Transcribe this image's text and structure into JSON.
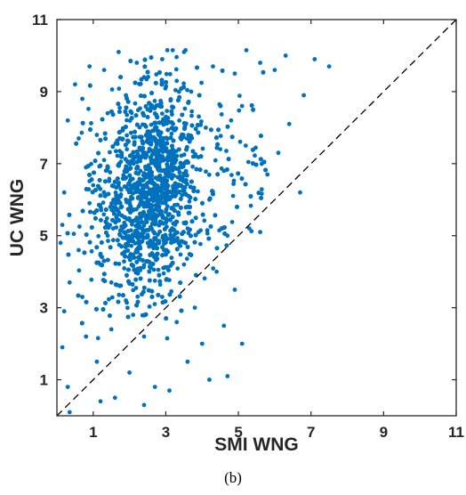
{
  "chart_data": {
    "type": "scatter",
    "xlabel": "SMI WNG",
    "ylabel": "UC WNG",
    "xlim": [
      0,
      11
    ],
    "ylim": [
      0,
      11
    ],
    "xticks": [
      "1",
      "3",
      "5",
      "7",
      "9",
      "11"
    ],
    "yticks": [
      "1",
      "3",
      "5",
      "7",
      "9",
      "11"
    ],
    "grid": false,
    "reference_line": {
      "style": "dashed",
      "from": [
        0,
        0
      ],
      "to": [
        11,
        11
      ],
      "color": "#000000"
    },
    "series": [
      {
        "color": "#0072BD",
        "points_summary": "about 4000 points; x mostly 0.2–7.5 (dense 1–4), y mostly 0.1–10.2 (dense 5–9)",
        "points": [
          [
            1.7,
            10.1
          ],
          [
            3.5,
            10.1
          ],
          [
            6.3,
            10.0
          ],
          [
            7.1,
            9.9
          ],
          [
            7.5,
            9.7
          ],
          [
            6.0,
            9.6
          ],
          [
            5.6,
            9.8
          ],
          [
            0.9,
            9.7
          ],
          [
            0.5,
            9.2
          ],
          [
            0.3,
            8.2
          ],
          [
            6.8,
            8.9
          ],
          [
            6.4,
            8.1
          ],
          [
            6.1,
            7.3
          ],
          [
            5.8,
            6.7
          ],
          [
            6.7,
            6.2
          ],
          [
            5.6,
            5.1
          ],
          [
            5.3,
            5.2
          ],
          [
            4.7,
            5.0
          ],
          [
            4.9,
            3.5
          ],
          [
            4.7,
            1.1
          ],
          [
            4.2,
            1.0
          ],
          [
            4.6,
            2.5
          ],
          [
            5.1,
            2.0
          ],
          [
            0.35,
            3.7
          ],
          [
            0.2,
            2.9
          ],
          [
            0.15,
            1.9
          ],
          [
            0.3,
            0.8
          ],
          [
            0.35,
            0.1
          ],
          [
            0.1,
            4.8
          ],
          [
            0.15,
            5.3
          ],
          [
            0.2,
            6.2
          ],
          [
            1.2,
            0.4
          ],
          [
            1.6,
            0.5
          ],
          [
            2.4,
            0.3
          ],
          [
            2.7,
            0.8
          ],
          [
            3.1,
            0.7
          ],
          [
            2.0,
            1.2
          ],
          [
            3.6,
            1.5
          ],
          [
            4.0,
            2.0
          ],
          [
            3.8,
            3.0
          ],
          [
            4.4,
            4.0
          ],
          [
            4.6,
            6.8
          ],
          [
            5.2,
            7.5
          ],
          [
            5.1,
            8.6
          ],
          [
            4.9,
            9.5
          ],
          [
            4.3,
            9.7
          ],
          [
            2.9,
            9.9
          ],
          [
            2.2,
            9.8
          ],
          [
            1.3,
            9.6
          ],
          [
            0.7,
            8.8
          ],
          [
            0.6,
            7.7
          ],
          [
            0.8,
            6.9
          ],
          [
            0.9,
            5.9
          ],
          [
            0.6,
            4.6
          ],
          [
            0.7,
            3.3
          ],
          [
            0.8,
            2.2
          ],
          [
            1.1,
            1.5
          ],
          [
            1.5,
            2.4
          ],
          [
            1.9,
            3.2
          ],
          [
            2.3,
            4.1
          ],
          [
            2.7,
            4.9
          ],
          [
            3.1,
            5.6
          ],
          [
            3.4,
            6.4
          ],
          [
            3.8,
            7.2
          ],
          [
            4.1,
            8.0
          ],
          [
            2.5,
            8.5
          ],
          [
            2.8,
            7.9
          ],
          [
            3.0,
            8.3
          ],
          [
            3.2,
            8.1
          ],
          [
            2.6,
            7.6
          ],
          [
            2.0,
            7.0
          ],
          [
            1.6,
            6.5
          ],
          [
            1.9,
            6.0
          ],
          [
            2.2,
            5.5
          ],
          [
            1.4,
            5.0
          ],
          [
            1.8,
            4.5
          ],
          [
            1.2,
            4.2
          ],
          [
            1.5,
            3.7
          ],
          [
            2.1,
            2.8
          ],
          [
            2.4,
            2.2
          ],
          [
            2.9,
            3.3
          ],
          [
            3.3,
            2.6
          ],
          [
            3.5,
            4.2
          ],
          [
            3.9,
            5.1
          ],
          [
            4.2,
            6.0
          ],
          [
            4.5,
            7.4
          ],
          [
            4.8,
            8.2
          ],
          [
            3.7,
            9.0
          ],
          [
            3.3,
            9.3
          ],
          [
            2.4,
            9.4
          ],
          [
            1.9,
            8.9
          ],
          [
            1.4,
            8.4
          ],
          [
            1.1,
            7.8
          ],
          [
            1.3,
            7.1
          ],
          [
            1.0,
            6.4
          ],
          [
            2.3,
            6.8
          ],
          [
            2.9,
            6.2
          ],
          [
            3.6,
            5.8
          ]
        ]
      }
    ]
  },
  "caption": "(b)"
}
